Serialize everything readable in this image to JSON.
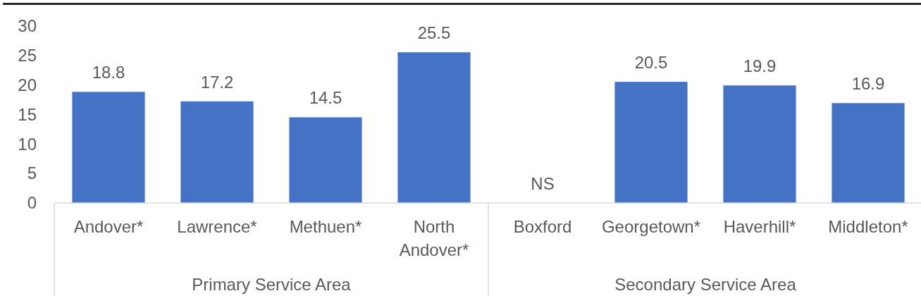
{
  "chart_data": {
    "type": "bar",
    "categories": [
      "Andover*",
      "Lawrence*",
      "Methuen*",
      "North Andover*",
      "Boxford",
      "Georgetown*",
      "Haverhill*",
      "Middleton*"
    ],
    "values": [
      18.8,
      17.2,
      14.5,
      25.5,
      null,
      20.5,
      19.9,
      16.9
    ],
    "color": "#4472c4",
    "value_labels": [
      "18.8",
      "17.2",
      "14.5",
      "25.5",
      "NS",
      "20.5",
      "19.9",
      "16.9"
    ],
    "ylim": [
      0,
      30
    ],
    "yticks": [
      0,
      5,
      10,
      15,
      20,
      25,
      30
    ],
    "annotations": [
      "Primary Service Area",
      "Secondary Service Area"
    ]
  }
}
